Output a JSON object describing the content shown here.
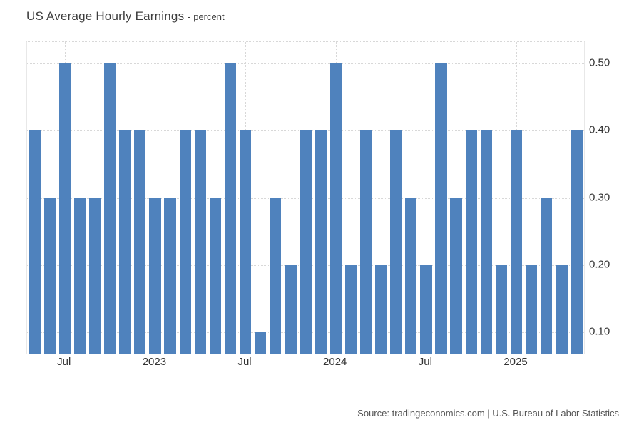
{
  "title": {
    "main": "US Average Hourly Earnings",
    "subtitle": "- percent"
  },
  "source": "Source: tradingeconomics.com | U.S. Bureau of Labor Statistics",
  "colors": {
    "bar": "#4f82bd",
    "gridline": "#d8d8d8",
    "plot_border": "#e8e8e8",
    "title_text": "#3d3d3d",
    "axis_text": "#333333",
    "source_text": "#565656",
    "background": "#ffffff"
  },
  "chart_data": {
    "type": "bar",
    "title": "US Average Hourly Earnings",
    "subtitle": "percent",
    "ylabel": "percent",
    "xlabel": "",
    "legend": "none",
    "grid": "dotted",
    "yaxis_side": "right",
    "categories": [
      "2022-05",
      "2022-06",
      "2022-07",
      "2022-08",
      "2022-09",
      "2022-10",
      "2022-11",
      "2022-12",
      "2023-01",
      "2023-02",
      "2023-03",
      "2023-04",
      "2023-05",
      "2023-06",
      "2023-07",
      "2023-08",
      "2023-09",
      "2023-10",
      "2023-11",
      "2023-12",
      "2024-01",
      "2024-02",
      "2024-03",
      "2024-04",
      "2024-05",
      "2024-06",
      "2024-07",
      "2024-08",
      "2024-09",
      "2024-10",
      "2024-11",
      "2024-12",
      "2025-01",
      "2025-02",
      "2025-03",
      "2025-04",
      "2025-05"
    ],
    "values": [
      0.4,
      0.3,
      0.5,
      0.3,
      0.3,
      0.5,
      0.4,
      0.4,
      0.3,
      0.3,
      0.4,
      0.4,
      0.3,
      0.5,
      0.4,
      0.1,
      0.3,
      0.2,
      0.4,
      0.4,
      0.5,
      0.2,
      0.4,
      0.2,
      0.4,
      0.3,
      0.2,
      0.5,
      0.3,
      0.4,
      0.4,
      0.2,
      0.4,
      0.2,
      0.3,
      0.2,
      0.4
    ],
    "xticks": [
      {
        "label": "Jul",
        "index": 2
      },
      {
        "label": "2023",
        "index": 8
      },
      {
        "label": "Jul",
        "index": 14
      },
      {
        "label": "2024",
        "index": 20
      },
      {
        "label": "Jul",
        "index": 26
      },
      {
        "label": "2025",
        "index": 32
      }
    ],
    "yticks": [
      {
        "label": "0.50",
        "value": 0.5
      },
      {
        "label": "0.40",
        "value": 0.4
      },
      {
        "label": "0.30",
        "value": 0.3
      },
      {
        "label": "0.20",
        "value": 0.2
      },
      {
        "label": "0.10",
        "value": 0.1
      }
    ],
    "ylim": [
      0.068,
      0.532
    ]
  }
}
